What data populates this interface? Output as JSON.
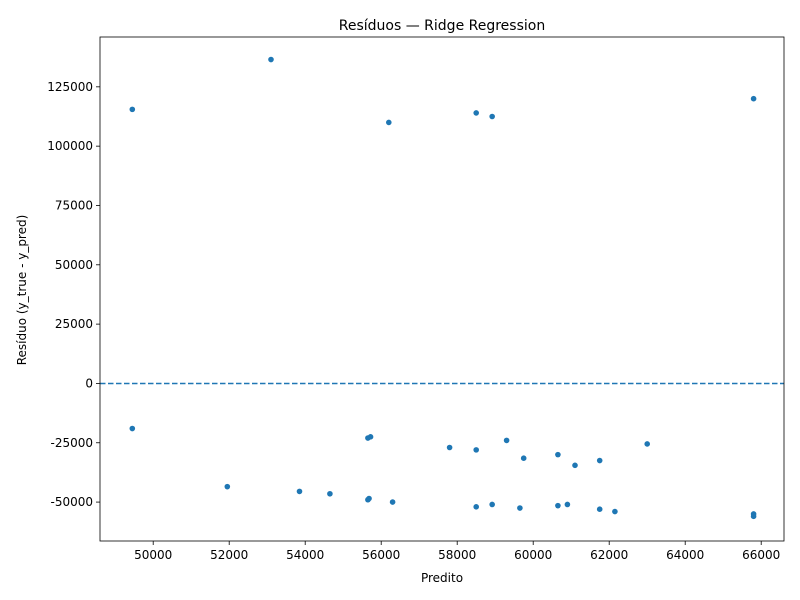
{
  "chart_data": {
    "type": "scatter",
    "title": "Resíduos — Ridge Regression",
    "xlabel": "Predito",
    "ylabel": "Resíduo (y_true - y_pred)",
    "xlim": [
      48600,
      66600
    ],
    "ylim": [
      -66400,
      146000
    ],
    "xticks": [
      50000,
      52000,
      54000,
      56000,
      58000,
      60000,
      62000,
      64000,
      66000
    ],
    "yticks": [
      -50000,
      -25000,
      0,
      25000,
      50000,
      75000,
      100000,
      125000
    ],
    "grid": false,
    "reference_line": {
      "y": 0,
      "style": "dashed"
    },
    "colors": {
      "points": "#1f77b4",
      "reference_line": "#1f77b4"
    },
    "series": [
      {
        "x": [
          49450,
          53100,
          56200,
          58500,
          58920,
          65800,
          49450,
          55650,
          55720,
          57800,
          58500,
          59300,
          59750,
          60650,
          61100,
          61750,
          63000,
          51950,
          53850,
          54650,
          55650,
          55680,
          56300,
          58500,
          58920,
          59650,
          60650,
          60900,
          61750,
          62150,
          65800,
          65800
        ],
        "y": [
          115500,
          136500,
          110000,
          114000,
          112500,
          120000,
          -19000,
          -23000,
          -22500,
          -27000,
          -28000,
          -24000,
          -31500,
          -30000,
          -34500,
          -32500,
          -25500,
          -43500,
          -45500,
          -46500,
          -49000,
          -48500,
          -50000,
          -52000,
          -51000,
          -52500,
          -51500,
          -51000,
          -53000,
          -54000,
          -55000,
          -56000
        ]
      }
    ]
  }
}
